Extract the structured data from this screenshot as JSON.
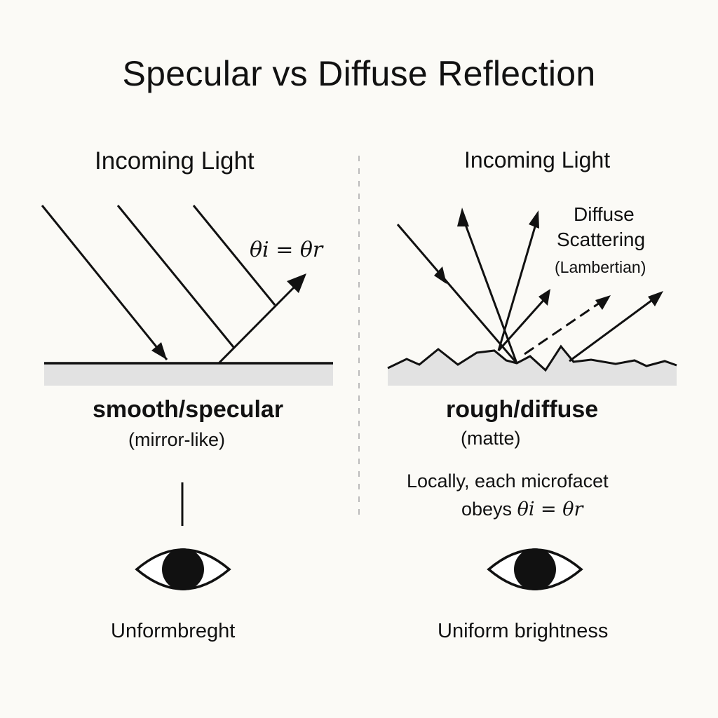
{
  "title": "Specular vs Diffuse Reflection",
  "left_panel": {
    "heading": "Incoming Light",
    "angle_label": "θi = θr",
    "surface_label": "smooth/specular",
    "surface_sublabel": "(mirror-like)",
    "caption": "Unformbreght"
  },
  "right_panel": {
    "heading": "Incoming Light",
    "diffuse_title_line1": "Diffuse",
    "diffuse_title_line2": "Scattering",
    "diffuse_subtitle": "(Lambertian)",
    "surface_label": "rough/diffuse",
    "surface_sublabel": "(matte)",
    "note_line1": "Locally, each microfacet",
    "note_line2_prefix": "obeys",
    "note_line2_math": "θi = θr",
    "caption": "Uniform brightness"
  },
  "icons": [
    "eye-icon",
    "eye-icon"
  ],
  "colors": {
    "background": "#fbfaf6",
    "ink": "#111111",
    "surface_fill": "#e2e2e2",
    "divider": "#bbbbbb"
  }
}
